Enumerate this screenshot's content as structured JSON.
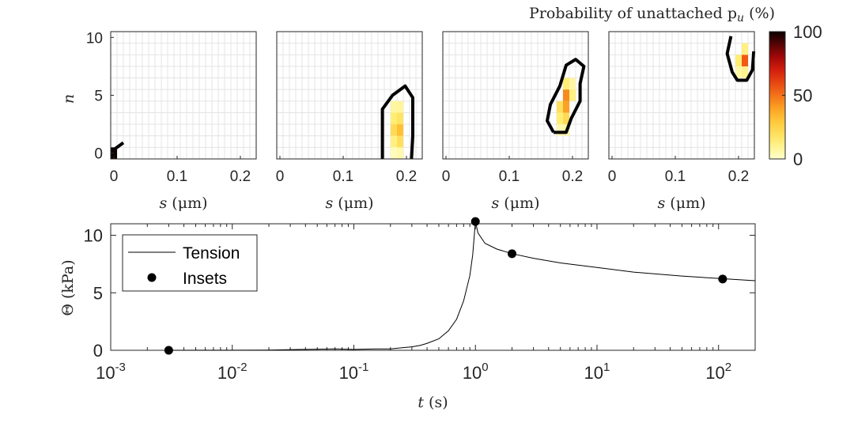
{
  "colorbar": {
    "title": "Probability of unattached p",
    "title_sub": "u",
    "title_unit": "(%)",
    "ticks": [
      "100",
      "50",
      "0"
    ]
  },
  "chart_data": [
    {
      "type": "heatmap",
      "panel": 1,
      "xlabel": "s (μm)",
      "ylabel": "n",
      "xlim": [
        -0.005,
        0.225
      ],
      "ylim": [
        -0.5,
        10.5
      ],
      "xticks": [
        "0",
        "0.1",
        "0.2"
      ],
      "yticks": [
        "0",
        "5",
        "10"
      ],
      "cell_width": 0.01,
      "cells": [
        {
          "s": 0.0,
          "n": 0,
          "p": 100
        }
      ],
      "contour": [
        [
          0.0,
          0.3
        ],
        [
          0.015,
          0.9
        ]
      ]
    },
    {
      "type": "heatmap",
      "panel": 2,
      "xlabel": "s (μm)",
      "ylabel": "",
      "xlim": [
        -0.005,
        0.225
      ],
      "ylim": [
        -0.5,
        10.5
      ],
      "xticks": [
        "0",
        "0.1",
        "0.2"
      ],
      "yticks": [],
      "cell_width": 0.01,
      "cells": [
        {
          "s": 0.18,
          "n": 0,
          "p": 3
        },
        {
          "s": 0.19,
          "n": 0,
          "p": 5
        },
        {
          "s": 0.18,
          "n": 1,
          "p": 12
        },
        {
          "s": 0.19,
          "n": 1,
          "p": 20
        },
        {
          "s": 0.18,
          "n": 2,
          "p": 22
        },
        {
          "s": 0.19,
          "n": 2,
          "p": 32
        },
        {
          "s": 0.18,
          "n": 3,
          "p": 14
        },
        {
          "s": 0.19,
          "n": 3,
          "p": 18
        },
        {
          "s": 0.18,
          "n": 4,
          "p": 7
        },
        {
          "s": 0.19,
          "n": 4,
          "p": 8
        }
      ],
      "contour": [
        [
          0.162,
          -0.5
        ],
        [
          0.162,
          3.8
        ],
        [
          0.178,
          5.0
        ],
        [
          0.198,
          5.8
        ],
        [
          0.21,
          4.8
        ],
        [
          0.21,
          1.5
        ],
        [
          0.208,
          -0.5
        ]
      ]
    },
    {
      "type": "heatmap",
      "panel": 3,
      "xlabel": "s (μm)",
      "ylabel": "",
      "xlim": [
        -0.005,
        0.225
      ],
      "ylim": [
        -0.5,
        10.5
      ],
      "xticks": [
        "0",
        "0.1",
        "0.2"
      ],
      "yticks": [],
      "cell_width": 0.01,
      "cells": [
        {
          "s": 0.18,
          "n": 2,
          "p": 5
        },
        {
          "s": 0.19,
          "n": 2,
          "p": 6
        },
        {
          "s": 0.18,
          "n": 3,
          "p": 14
        },
        {
          "s": 0.19,
          "n": 3,
          "p": 22
        },
        {
          "s": 0.18,
          "n": 4,
          "p": 20
        },
        {
          "s": 0.19,
          "n": 4,
          "p": 40
        },
        {
          "s": 0.19,
          "n": 5,
          "p": 45
        },
        {
          "s": 0.2,
          "n": 5,
          "p": 12
        },
        {
          "s": 0.19,
          "n": 6,
          "p": 14
        },
        {
          "s": 0.2,
          "n": 6,
          "p": 6
        }
      ],
      "contour": [
        [
          0.17,
          1.8
        ],
        [
          0.19,
          1.8
        ],
        [
          0.198,
          3.0
        ],
        [
          0.212,
          4.5
        ],
        [
          0.212,
          6.0
        ],
        [
          0.218,
          7.5
        ],
        [
          0.205,
          8.1
        ],
        [
          0.19,
          7.6
        ],
        [
          0.18,
          5.8
        ],
        [
          0.165,
          4.2
        ],
        [
          0.16,
          2.8
        ],
        [
          0.17,
          1.8
        ]
      ]
    },
    {
      "type": "heatmap",
      "panel": 4,
      "xlabel": "s (μm)",
      "ylabel": "",
      "xlim": [
        -0.005,
        0.225
      ],
      "ylim": [
        -0.5,
        10.5
      ],
      "xticks": [
        "0",
        "0.1",
        "0.2"
      ],
      "yticks": [],
      "cell_width": 0.01,
      "cells": [
        {
          "s": 0.2,
          "n": 7,
          "p": 6
        },
        {
          "s": 0.21,
          "n": 7,
          "p": 10
        },
        {
          "s": 0.2,
          "n": 8,
          "p": 14
        },
        {
          "s": 0.21,
          "n": 8,
          "p": 55
        },
        {
          "s": 0.21,
          "n": 9,
          "p": 12
        }
      ],
      "contour": [
        [
          0.188,
          10.1
        ],
        [
          0.182,
          8.6
        ],
        [
          0.19,
          7.0
        ],
        [
          0.198,
          6.3
        ],
        [
          0.213,
          6.3
        ],
        [
          0.222,
          7.2
        ],
        [
          0.224,
          8.8
        ]
      ]
    },
    {
      "type": "line",
      "xlabel": "t (s)",
      "ylabel": "Θ (kPa)",
      "xscale": "log",
      "xlim": [
        0.001,
        200
      ],
      "ylim": [
        0,
        11
      ],
      "xticks": [
        {
          "base": "10",
          "exp": "-3",
          "value": 0.001
        },
        {
          "base": "10",
          "exp": "-2",
          "value": 0.01
        },
        {
          "base": "10",
          "exp": "-1",
          "value": 0.1
        },
        {
          "base": "10",
          "exp": "0",
          "value": 1
        },
        {
          "base": "10",
          "exp": "1",
          "value": 10
        },
        {
          "base": "10",
          "exp": "2",
          "value": 100
        }
      ],
      "yticks": [
        0,
        5,
        10
      ],
      "legend_position": "top-left",
      "series": [
        {
          "name": "Tension",
          "style": "line",
          "x": [
            0.003,
            0.01,
            0.02,
            0.04,
            0.07,
            0.1,
            0.15,
            0.2,
            0.25,
            0.3,
            0.35,
            0.4,
            0.5,
            0.6,
            0.7,
            0.8,
            0.9,
            0.95,
            1.0,
            1.05,
            1.2,
            1.5,
            2.0,
            3.0,
            5.0,
            10,
            20,
            50,
            100,
            200
          ],
          "y": [
            0,
            0.01,
            0.02,
            0.08,
            0.12,
            0.08,
            0.12,
            0.12,
            0.22,
            0.3,
            0.42,
            0.6,
            1.0,
            1.7,
            2.7,
            4.3,
            6.5,
            8.3,
            11.2,
            10.2,
            9.3,
            8.8,
            8.4,
            8.0,
            7.6,
            7.2,
            6.8,
            6.45,
            6.25,
            6.05
          ]
        },
        {
          "name": "Insets",
          "style": "marker",
          "x": [
            0.003,
            1.0,
            2.0,
            108
          ],
          "y": [
            0,
            11.2,
            8.4,
            6.2
          ]
        }
      ]
    }
  ]
}
